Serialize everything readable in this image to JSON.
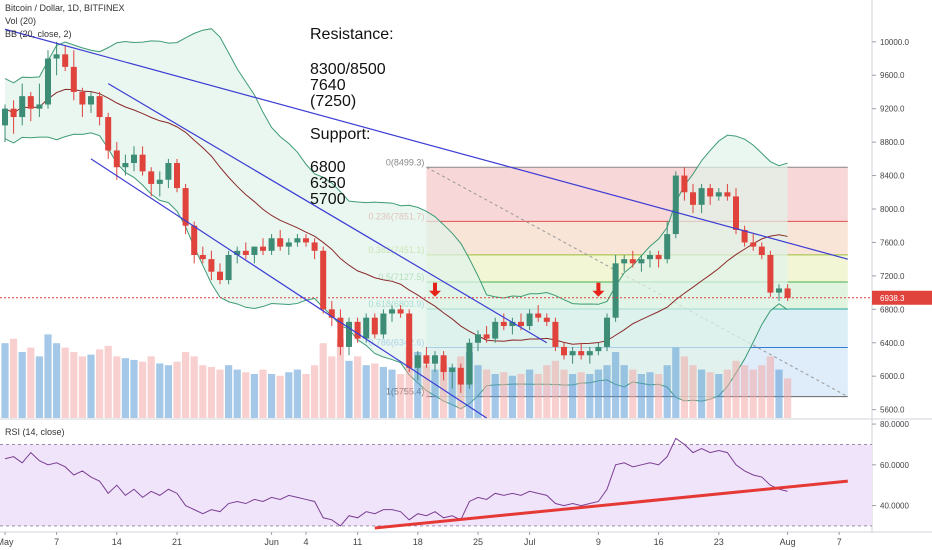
{
  "chart_data": {
    "type": "candlestick",
    "title": "Bitcoin / Dollar, 1D, BITFINEX",
    "indicators": [
      "Vol (20)",
      "BB (20, close, 2)"
    ],
    "rsi_label": "RSI (14, close)",
    "price_axis": {
      "ylim": [
        5500,
        10500
      ],
      "ticks": [
        5600,
        6000,
        6400,
        6800,
        7200,
        7600,
        8000,
        8400,
        8800,
        9200,
        9600,
        10000
      ],
      "tick_labels": [
        "5600.0",
        "6000.0",
        "6400.0",
        "6800.0",
        "7200.0",
        "7600.0",
        "8000.0",
        "8400.0",
        "8800.0",
        "9200.0",
        "9600.0",
        "10000.0"
      ],
      "current_price": 6938.3,
      "current_price_label": "6938.3"
    },
    "rsi_axis": {
      "ylim": [
        28,
        82
      ],
      "ticks": [
        40,
        60,
        80
      ],
      "tick_labels": [
        "40.0000",
        "60.0000",
        "80.0000"
      ],
      "band": [
        30,
        70
      ]
    },
    "x_axis": {
      "labels": [
        {
          "day": 0,
          "text": "May"
        },
        {
          "day": 6,
          "text": "7"
        },
        {
          "day": 13,
          "text": "14"
        },
        {
          "day": 20,
          "text": "21"
        },
        {
          "day": 31,
          "text": "Jun"
        },
        {
          "day": 35,
          "text": "4"
        },
        {
          "day": 41,
          "text": "11"
        },
        {
          "day": 48,
          "text": "18"
        },
        {
          "day": 55,
          "text": "25"
        },
        {
          "day": 61,
          "text": "Jul"
        },
        {
          "day": 69,
          "text": "9"
        },
        {
          "day": 76,
          "text": "16"
        },
        {
          "day": 83,
          "text": "23"
        },
        {
          "day": 91,
          "text": "Aug"
        },
        {
          "day": 97,
          "text": "7"
        }
      ]
    },
    "candles": [
      {
        "o": 9000,
        "h": 9250,
        "l": 8800,
        "c": 9200
      },
      {
        "o": 9200,
        "h": 9300,
        "l": 8900,
        "c": 9100
      },
      {
        "o": 9100,
        "h": 9500,
        "l": 9000,
        "c": 9350
      },
      {
        "o": 9350,
        "h": 9400,
        "l": 9050,
        "c": 9200
      },
      {
        "o": 9200,
        "h": 9500,
        "l": 9100,
        "c": 9250
      },
      {
        "o": 9250,
        "h": 9900,
        "l": 9200,
        "c": 9800
      },
      {
        "o": 9800,
        "h": 10000,
        "l": 9600,
        "c": 9850
      },
      {
        "o": 9850,
        "h": 9950,
        "l": 9650,
        "c": 9700
      },
      {
        "o": 9700,
        "h": 9900,
        "l": 9300,
        "c": 9400
      },
      {
        "o": 9400,
        "h": 9450,
        "l": 9100,
        "c": 9250
      },
      {
        "o": 9250,
        "h": 9400,
        "l": 9150,
        "c": 9350
      },
      {
        "o": 9350,
        "h": 9400,
        "l": 9000,
        "c": 9100
      },
      {
        "o": 9100,
        "h": 9150,
        "l": 8600,
        "c": 8700
      },
      {
        "o": 8700,
        "h": 8800,
        "l": 8350,
        "c": 8500
      },
      {
        "o": 8500,
        "h": 8650,
        "l": 8400,
        "c": 8550
      },
      {
        "o": 8550,
        "h": 8750,
        "l": 8450,
        "c": 8650
      },
      {
        "o": 8650,
        "h": 8750,
        "l": 8400,
        "c": 8450
      },
      {
        "o": 8450,
        "h": 8500,
        "l": 8150,
        "c": 8300
      },
      {
        "o": 8300,
        "h": 8450,
        "l": 8150,
        "c": 8350
      },
      {
        "o": 8350,
        "h": 8600,
        "l": 8250,
        "c": 8550
      },
      {
        "o": 8550,
        "h": 8600,
        "l": 8200,
        "c": 8250
      },
      {
        "o": 8250,
        "h": 8300,
        "l": 7700,
        "c": 7800
      },
      {
        "o": 7800,
        "h": 7850,
        "l": 7350,
        "c": 7450
      },
      {
        "o": 7450,
        "h": 7550,
        "l": 7350,
        "c": 7400
      },
      {
        "o": 7400,
        "h": 7500,
        "l": 7150,
        "c": 7250
      },
      {
        "o": 7250,
        "h": 7350,
        "l": 7100,
        "c": 7150
      },
      {
        "o": 7150,
        "h": 7500,
        "l": 7100,
        "c": 7450
      },
      {
        "o": 7450,
        "h": 7550,
        "l": 7350,
        "c": 7500
      },
      {
        "o": 7500,
        "h": 7600,
        "l": 7400,
        "c": 7450
      },
      {
        "o": 7450,
        "h": 7550,
        "l": 7350,
        "c": 7550
      },
      {
        "o": 7550,
        "h": 7650,
        "l": 7450,
        "c": 7500
      },
      {
        "o": 7500,
        "h": 7700,
        "l": 7450,
        "c": 7650
      },
      {
        "o": 7650,
        "h": 7750,
        "l": 7500,
        "c": 7550
      },
      {
        "o": 7550,
        "h": 7650,
        "l": 7450,
        "c": 7600
      },
      {
        "o": 7600,
        "h": 7700,
        "l": 7550,
        "c": 7650
      },
      {
        "o": 7650,
        "h": 7700,
        "l": 7550,
        "c": 7600
      },
      {
        "o": 7600,
        "h": 7650,
        "l": 7400,
        "c": 7500
      },
      {
        "o": 7500,
        "h": 7550,
        "l": 6750,
        "c": 6800
      },
      {
        "o": 6800,
        "h": 6900,
        "l": 6600,
        "c": 6700
      },
      {
        "o": 6700,
        "h": 6800,
        "l": 6250,
        "c": 6350
      },
      {
        "o": 6350,
        "h": 6700,
        "l": 6250,
        "c": 6650
      },
      {
        "o": 6650,
        "h": 6700,
        "l": 6400,
        "c": 6450
      },
      {
        "o": 6450,
        "h": 6750,
        "l": 6400,
        "c": 6700
      },
      {
        "o": 6700,
        "h": 6750,
        "l": 6450,
        "c": 6500
      },
      {
        "o": 6500,
        "h": 6800,
        "l": 6450,
        "c": 6750
      },
      {
        "o": 6750,
        "h": 6850,
        "l": 6650,
        "c": 6800
      },
      {
        "o": 6800,
        "h": 6850,
        "l": 6700,
        "c": 6750
      },
      {
        "o": 6750,
        "h": 6800,
        "l": 6050,
        "c": 6100
      },
      {
        "o": 6100,
        "h": 6300,
        "l": 5950,
        "c": 6250
      },
      {
        "o": 6250,
        "h": 6350,
        "l": 6100,
        "c": 6150
      },
      {
        "o": 6150,
        "h": 6300,
        "l": 6050,
        "c": 6250
      },
      {
        "o": 6250,
        "h": 6300,
        "l": 5950,
        "c": 6050
      },
      {
        "o": 6050,
        "h": 6150,
        "l": 5850,
        "c": 6100
      },
      {
        "o": 6100,
        "h": 6150,
        "l": 5800,
        "c": 5900
      },
      {
        "o": 5900,
        "h": 6450,
        "l": 5850,
        "c": 6400
      },
      {
        "o": 6400,
        "h": 6550,
        "l": 6300,
        "c": 6500
      },
      {
        "o": 6500,
        "h": 6600,
        "l": 6400,
        "c": 6450
      },
      {
        "o": 6450,
        "h": 6700,
        "l": 6400,
        "c": 6650
      },
      {
        "o": 6650,
        "h": 6750,
        "l": 6550,
        "c": 6600
      },
      {
        "o": 6600,
        "h": 6700,
        "l": 6500,
        "c": 6650
      },
      {
        "o": 6650,
        "h": 6750,
        "l": 6550,
        "c": 6600
      },
      {
        "o": 6600,
        "h": 6800,
        "l": 6550,
        "c": 6750
      },
      {
        "o": 6750,
        "h": 6850,
        "l": 6650,
        "c": 6700
      },
      {
        "o": 6700,
        "h": 6750,
        "l": 6600,
        "c": 6650
      },
      {
        "o": 6650,
        "h": 6700,
        "l": 6300,
        "c": 6350
      },
      {
        "o": 6350,
        "h": 6400,
        "l": 6200,
        "c": 6250
      },
      {
        "o": 6250,
        "h": 6350,
        "l": 6150,
        "c": 6300
      },
      {
        "o": 6300,
        "h": 6400,
        "l": 6200,
        "c": 6250
      },
      {
        "o": 6250,
        "h": 6350,
        "l": 6150,
        "c": 6300
      },
      {
        "o": 6300,
        "h": 6400,
        "l": 6250,
        "c": 6350
      },
      {
        "o": 6350,
        "h": 6750,
        "l": 6300,
        "c": 6700
      },
      {
        "o": 6700,
        "h": 7450,
        "l": 6650,
        "c": 7350
      },
      {
        "o": 7350,
        "h": 7450,
        "l": 7250,
        "c": 7400
      },
      {
        "o": 7400,
        "h": 7500,
        "l": 7300,
        "c": 7350
      },
      {
        "o": 7350,
        "h": 7450,
        "l": 7250,
        "c": 7400
      },
      {
        "o": 7400,
        "h": 7500,
        "l": 7300,
        "c": 7450
      },
      {
        "o": 7450,
        "h": 7500,
        "l": 7300,
        "c": 7400
      },
      {
        "o": 7400,
        "h": 7850,
        "l": 7350,
        "c": 7700
      },
      {
        "o": 7700,
        "h": 8450,
        "l": 7650,
        "c": 8400
      },
      {
        "o": 8400,
        "h": 8500,
        "l": 8100,
        "c": 8200
      },
      {
        "o": 8200,
        "h": 8300,
        "l": 7950,
        "c": 8050
      },
      {
        "o": 8050,
        "h": 8300,
        "l": 7950,
        "c": 8250
      },
      {
        "o": 8250,
        "h": 8300,
        "l": 8050,
        "c": 8150
      },
      {
        "o": 8150,
        "h": 8250,
        "l": 8100,
        "c": 8200
      },
      {
        "o": 8200,
        "h": 8300,
        "l": 8100,
        "c": 8150
      },
      {
        "o": 8150,
        "h": 8250,
        "l": 7700,
        "c": 7750
      },
      {
        "o": 7750,
        "h": 7800,
        "l": 7550,
        "c": 7600
      },
      {
        "o": 7600,
        "h": 7700,
        "l": 7500,
        "c": 7550
      },
      {
        "o": 7550,
        "h": 7600,
        "l": 7400,
        "c": 7450
      },
      {
        "o": 7450,
        "h": 7500,
        "l": 6950,
        "c": 7000
      },
      {
        "o": 7000,
        "h": 7100,
        "l": 6900,
        "c": 7050
      },
      {
        "o": 7050,
        "h": 7100,
        "l": 6900,
        "c": 6938
      }
    ],
    "volume_series": "Vol (20)",
    "volume_max_fraction": [
      0.85,
      0.9,
      0.75,
      0.8,
      0.7,
      0.95,
      0.85,
      0.8,
      0.75,
      0.7,
      0.72,
      0.78,
      0.82,
      0.7,
      0.68,
      0.66,
      0.64,
      0.7,
      0.62,
      0.6,
      0.64,
      0.75,
      0.7,
      0.6,
      0.58,
      0.55,
      0.6,
      0.55,
      0.52,
      0.5,
      0.55,
      0.5,
      0.48,
      0.52,
      0.55,
      0.5,
      0.6,
      0.85,
      0.7,
      0.9,
      0.65,
      0.7,
      0.6,
      0.62,
      0.58,
      0.55,
      0.5,
      0.8,
      0.75,
      0.6,
      0.55,
      0.62,
      0.58,
      0.7,
      0.75,
      0.6,
      0.55,
      0.5,
      0.52,
      0.48,
      0.5,
      0.55,
      0.5,
      0.6,
      0.65,
      0.55,
      0.5,
      0.52,
      0.5,
      0.55,
      0.6,
      0.75,
      0.6,
      0.55,
      0.5,
      0.52,
      0.5,
      0.6,
      0.8,
      0.7,
      0.6,
      0.55,
      0.52,
      0.5,
      0.55,
      0.65,
      0.6,
      0.55,
      0.6,
      0.7,
      0.55,
      0.45
    ],
    "rsi_values": [
      63,
      64,
      61,
      66,
      62,
      60,
      61,
      59,
      55,
      57,
      54,
      52,
      46,
      50,
      45,
      48,
      44,
      47,
      45,
      48,
      46,
      40,
      38,
      36,
      38,
      37,
      41,
      42,
      41,
      43,
      42,
      44,
      43,
      45,
      44,
      43,
      42,
      34,
      33,
      30,
      35,
      34,
      37,
      36,
      38,
      38,
      37,
      33,
      36,
      35,
      37,
      34,
      35,
      33,
      42,
      44,
      43,
      46,
      45,
      46,
      45,
      47,
      46,
      45,
      41,
      40,
      41,
      40,
      41,
      42,
      48,
      60,
      61,
      59,
      60,
      61,
      60,
      64,
      73,
      70,
      66,
      68,
      66,
      67,
      66,
      60,
      57,
      55,
      54,
      50,
      48,
      47
    ],
    "fibonacci": [
      {
        "level": 8499.3,
        "label": "0(8499.3)"
      },
      {
        "level": 7851.7,
        "label": "0.236(7851.7)"
      },
      {
        "level": 7451.1,
        "label": "0.382(7451.1)"
      },
      {
        "level": 7127.5,
        "label": "0.5(7127.5)"
      },
      {
        "level": 6803.9,
        "label": "0.618(6803.9)"
      },
      {
        "level": 6342.6,
        "label": "0.786(6342.6)"
      },
      {
        "level": 5755.4,
        "label": "1(5755.4)"
      }
    ],
    "fib_range": {
      "from_day": 49,
      "to_day": 98
    },
    "trendlines": [
      {
        "from": [
          0,
          10150
        ],
        "to": [
          98,
          7400
        ],
        "color": "#3c3cd4"
      },
      {
        "from": [
          12,
          9500
        ],
        "to": [
          63,
          6400
        ],
        "color": "#3c3cd4"
      },
      {
        "from": [
          10,
          8600
        ],
        "to": [
          56,
          5500
        ],
        "color": "#3c3cd4"
      }
    ],
    "rsi_trendline": {
      "from": [
        43,
        29
      ],
      "to": [
        98,
        52
      ],
      "color": "#e53935"
    },
    "arrows": [
      {
        "day": 50,
        "price": 6950
      },
      {
        "day": 69,
        "price": 6950
      }
    ],
    "colors": {
      "up": "#3d8c76",
      "down": "#e0423c",
      "bb_line": "#3e9b75",
      "bb_fill": "#dff3ea",
      "basis": "#8b2a2a",
      "rsi_line": "#7b3f93",
      "rsi_band": "#f0e4fb",
      "current_price_tag": "#e0423c"
    }
  },
  "annotation": {
    "resistance_title": "Resistance:",
    "resistance_levels": [
      "8300/8500",
      "7640",
      "(7250)"
    ],
    "support_title": "Support:",
    "support_levels": [
      "6800",
      "6350",
      "5700"
    ]
  }
}
